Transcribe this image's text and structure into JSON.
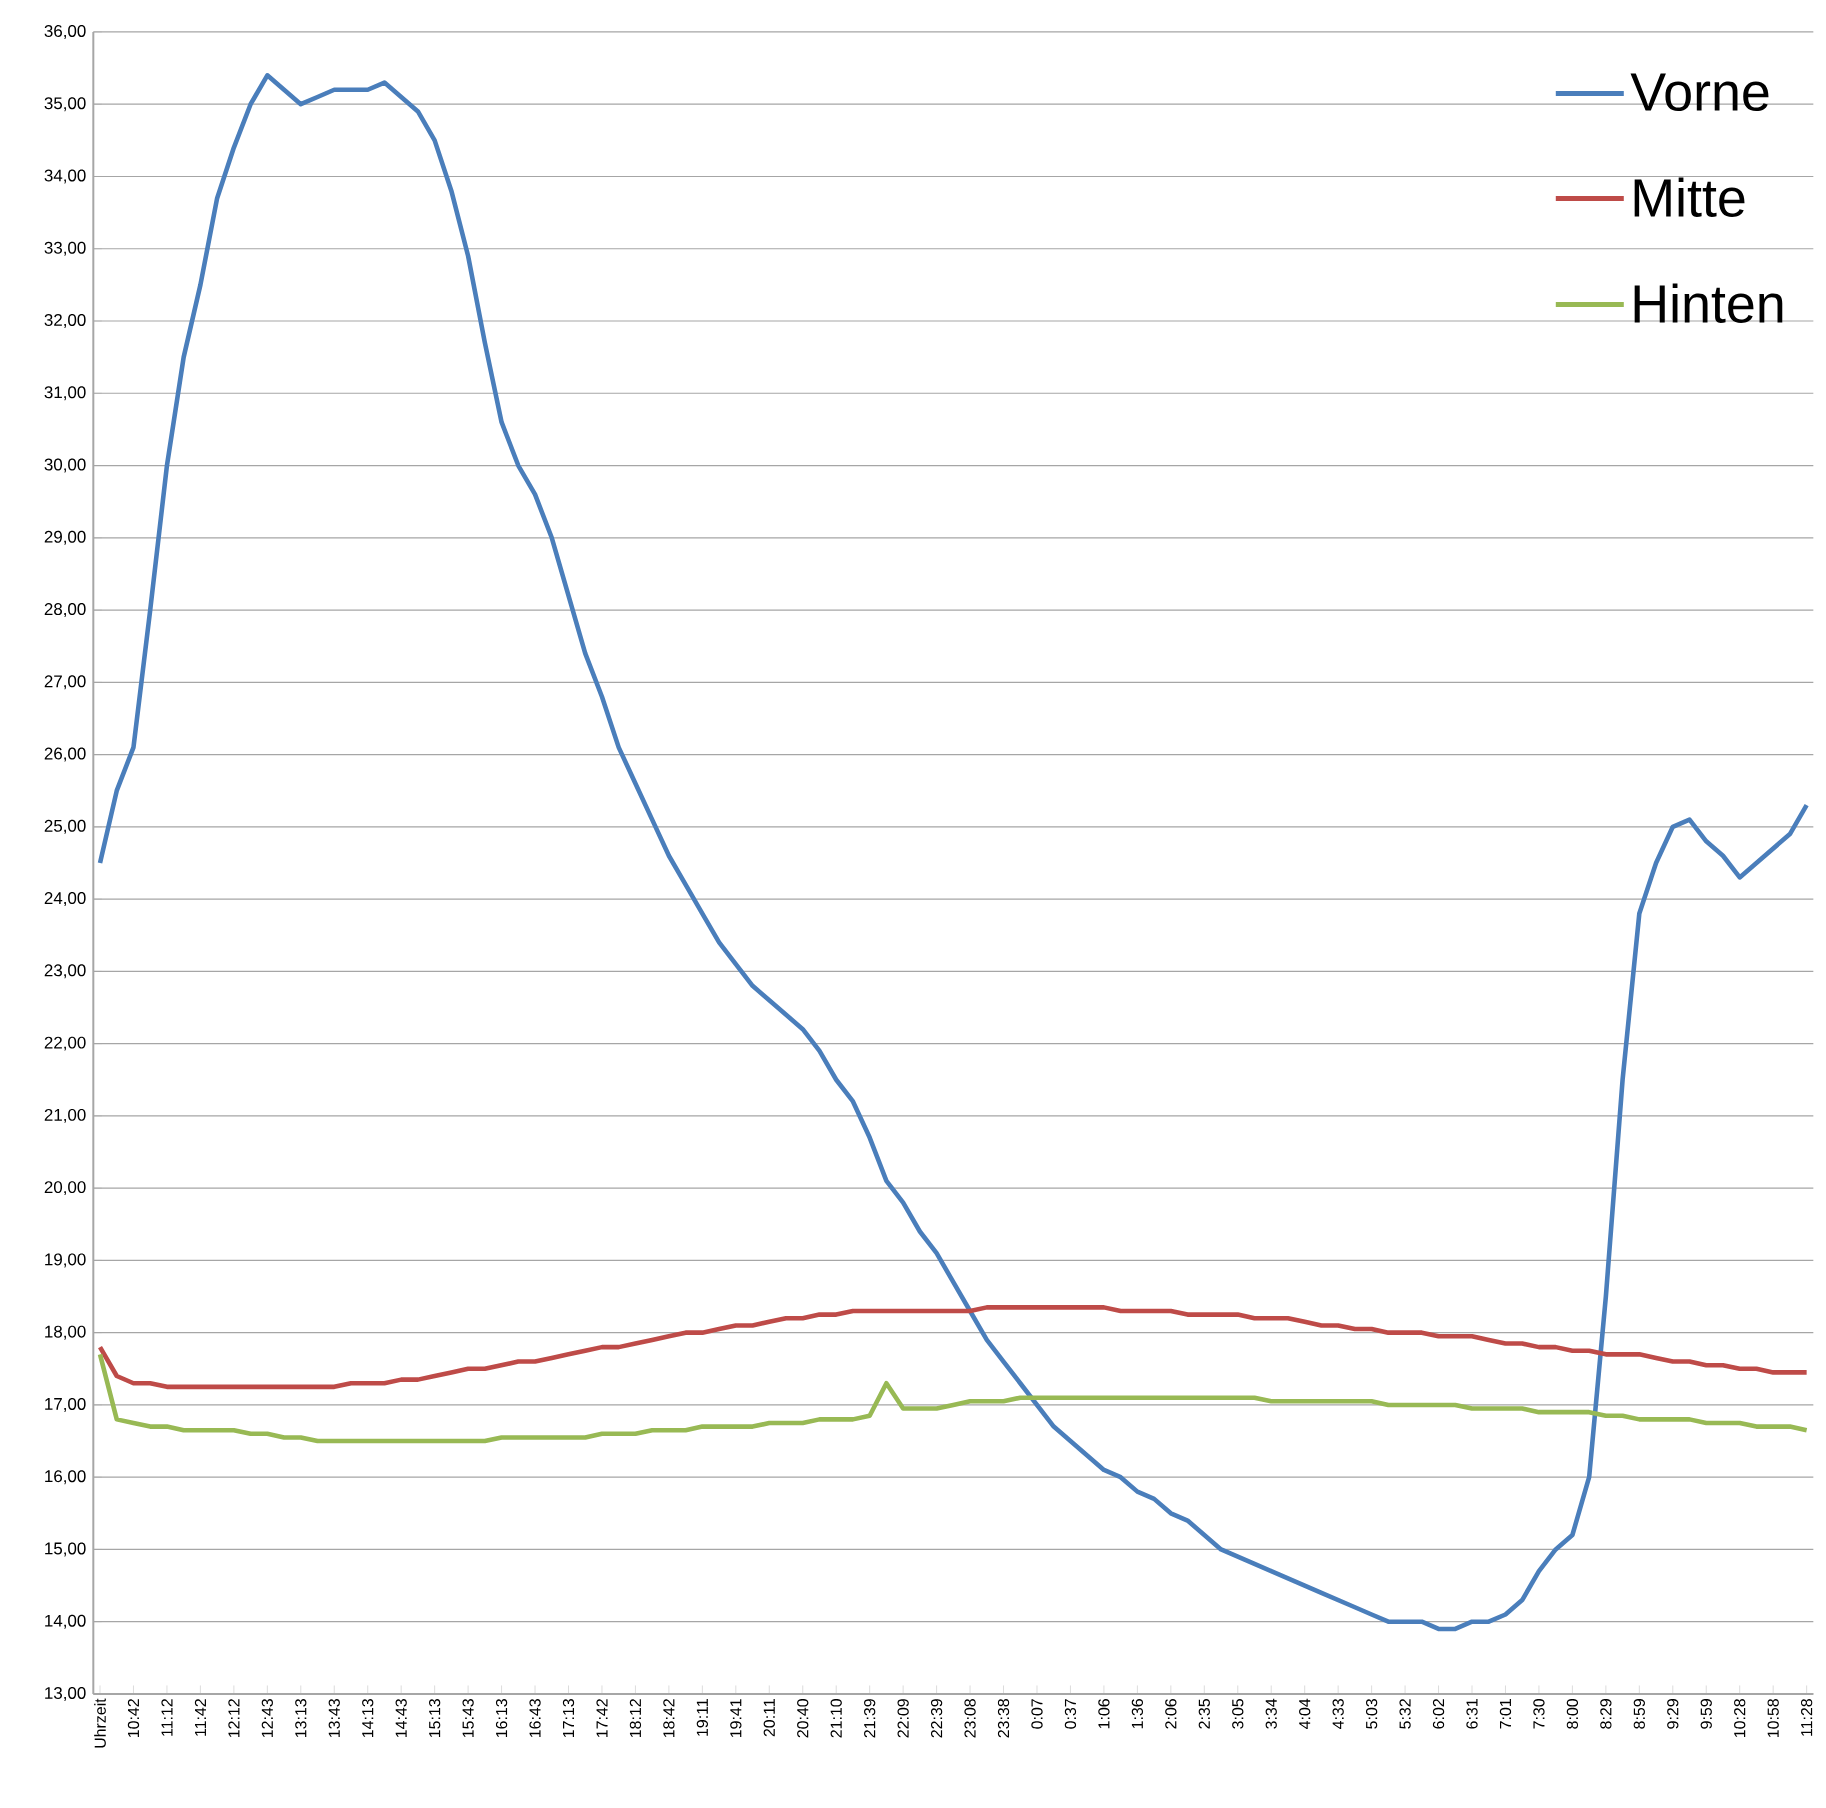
{
  "chart_data": {
    "type": "line",
    "categories": [
      "Uhrzeit",
      null,
      "10:42",
      null,
      "11:12",
      null,
      "11:42",
      null,
      "12:12",
      null,
      "12:43",
      null,
      "13:13",
      null,
      "13:43",
      null,
      "14:13",
      null,
      "14:43",
      null,
      "15:13",
      null,
      "15:43",
      null,
      "16:13",
      null,
      "16:43",
      null,
      "17:13",
      null,
      "17:42",
      null,
      "18:12",
      null,
      "18:42",
      null,
      "19:11",
      null,
      "19:41",
      null,
      "20:11",
      null,
      "20:40",
      null,
      "21:10",
      null,
      "21:39",
      null,
      "22:09",
      null,
      "22:39",
      null,
      "23:08",
      null,
      "23:38",
      null,
      "0:07",
      null,
      "0:37",
      null,
      "1:06",
      null,
      "1:36",
      null,
      "2:06",
      null,
      "2:35",
      null,
      "3:05",
      null,
      "3:34",
      null,
      "4:04",
      null,
      "4:33",
      null,
      "5:03",
      null,
      "5:32",
      null,
      "6:02",
      null,
      "6:31",
      null,
      "7:01",
      null,
      "7:30",
      null,
      "8:00",
      null,
      "8:29",
      null,
      "8:59",
      null,
      "9:29",
      null,
      "9:59",
      null,
      "10:28",
      null,
      "10:58",
      null,
      "11:28"
    ],
    "series": [
      {
        "name": "Vorne",
        "color": "#4a7ebb",
        "values": [
          24.5,
          25.5,
          26.1,
          28.0,
          30.0,
          31.5,
          32.5,
          33.7,
          34.4,
          35.0,
          35.4,
          35.2,
          35.0,
          35.1,
          35.2,
          35.2,
          35.2,
          35.3,
          35.1,
          34.9,
          34.5,
          33.8,
          32.9,
          31.7,
          30.6,
          30.0,
          29.6,
          29.0,
          28.2,
          27.4,
          26.8,
          26.1,
          25.6,
          25.1,
          24.6,
          24.2,
          23.8,
          23.4,
          23.1,
          22.8,
          22.6,
          22.4,
          22.2,
          21.9,
          21.5,
          21.2,
          20.7,
          20.1,
          19.8,
          19.4,
          19.1,
          18.7,
          18.3,
          17.9,
          17.6,
          17.3,
          17.0,
          16.7,
          16.5,
          16.3,
          16.1,
          16.0,
          15.8,
          15.7,
          15.5,
          15.4,
          15.2,
          15.0,
          14.9,
          14.8,
          14.7,
          14.6,
          14.5,
          14.4,
          14.3,
          14.2,
          14.1,
          14.0,
          14.0,
          14.0,
          13.9,
          13.9,
          14.0,
          14.0,
          14.1,
          14.3,
          14.7,
          15.0,
          15.2,
          16.0,
          18.5,
          21.5,
          23.8,
          24.5,
          25.0,
          25.1,
          24.8,
          24.6,
          24.3,
          24.5,
          24.7,
          24.9,
          25.3
        ]
      },
      {
        "name": "Mitte",
        "color": "#be4b48",
        "values": [
          17.8,
          17.4,
          17.3,
          17.3,
          17.25,
          17.25,
          17.25,
          17.25,
          17.25,
          17.25,
          17.25,
          17.25,
          17.25,
          17.25,
          17.25,
          17.3,
          17.3,
          17.3,
          17.35,
          17.35,
          17.4,
          17.45,
          17.5,
          17.5,
          17.55,
          17.6,
          17.6,
          17.65,
          17.7,
          17.75,
          17.8,
          17.8,
          17.85,
          17.9,
          17.95,
          18.0,
          18.0,
          18.05,
          18.1,
          18.1,
          18.15,
          18.2,
          18.2,
          18.25,
          18.25,
          18.3,
          18.3,
          18.3,
          18.3,
          18.3,
          18.3,
          18.3,
          18.3,
          18.35,
          18.35,
          18.35,
          18.35,
          18.35,
          18.35,
          18.35,
          18.35,
          18.3,
          18.3,
          18.3,
          18.3,
          18.25,
          18.25,
          18.25,
          18.25,
          18.2,
          18.2,
          18.2,
          18.15,
          18.1,
          18.1,
          18.05,
          18.05,
          18.0,
          18.0,
          18.0,
          17.95,
          17.95,
          17.95,
          17.9,
          17.85,
          17.85,
          17.8,
          17.8,
          17.75,
          17.75,
          17.7,
          17.7,
          17.7,
          17.65,
          17.6,
          17.6,
          17.55,
          17.55,
          17.5,
          17.5,
          17.45,
          17.45,
          17.45
        ]
      },
      {
        "name": "Hinten",
        "color": "#98b954",
        "values": [
          17.7,
          16.8,
          16.75,
          16.7,
          16.7,
          16.65,
          16.65,
          16.65,
          16.65,
          16.6,
          16.6,
          16.55,
          16.55,
          16.5,
          16.5,
          16.5,
          16.5,
          16.5,
          16.5,
          16.5,
          16.5,
          16.5,
          16.5,
          16.5,
          16.55,
          16.55,
          16.55,
          16.55,
          16.55,
          16.55,
          16.6,
          16.6,
          16.6,
          16.65,
          16.65,
          16.65,
          16.7,
          16.7,
          16.7,
          16.7,
          16.75,
          16.75,
          16.75,
          16.8,
          16.8,
          16.8,
          16.85,
          17.3,
          16.95,
          16.95,
          16.95,
          17.0,
          17.05,
          17.05,
          17.05,
          17.1,
          17.1,
          17.1,
          17.1,
          17.1,
          17.1,
          17.1,
          17.1,
          17.1,
          17.1,
          17.1,
          17.1,
          17.1,
          17.1,
          17.1,
          17.05,
          17.05,
          17.05,
          17.05,
          17.05,
          17.05,
          17.05,
          17.0,
          17.0,
          17.0,
          17.0,
          17.0,
          16.95,
          16.95,
          16.95,
          16.95,
          16.9,
          16.9,
          16.9,
          16.9,
          16.85,
          16.85,
          16.8,
          16.8,
          16.8,
          16.8,
          16.75,
          16.75,
          16.75,
          16.7,
          16.7,
          16.7,
          16.65
        ]
      }
    ],
    "ylim": [
      13,
      36
    ],
    "yticks": [
      {
        "value": 13,
        "label": "13,00"
      },
      {
        "value": 14,
        "label": "14,00"
      },
      {
        "value": 15,
        "label": "15,00"
      },
      {
        "value": 16,
        "label": "16,00"
      },
      {
        "value": 17,
        "label": "17,00"
      },
      {
        "value": 18,
        "label": "18,00"
      },
      {
        "value": 19,
        "label": "19,00"
      },
      {
        "value": 20,
        "label": "20,00"
      },
      {
        "value": 21,
        "label": "21,00"
      },
      {
        "value": 22,
        "label": "22,00"
      },
      {
        "value": 23,
        "label": "23,00"
      },
      {
        "value": 24,
        "label": "24,00"
      },
      {
        "value": 25,
        "label": "25,00"
      },
      {
        "value": 26,
        "label": "26,00"
      },
      {
        "value": 27,
        "label": "27,00"
      },
      {
        "value": 28,
        "label": "28,00"
      },
      {
        "value": 29,
        "label": "29,00"
      },
      {
        "value": 30,
        "label": "30,00"
      },
      {
        "value": 31,
        "label": "31,00"
      },
      {
        "value": 32,
        "label": "32,00"
      },
      {
        "value": 33,
        "label": "33,00"
      },
      {
        "value": 34,
        "label": "34,00"
      },
      {
        "value": 35,
        "label": "35,00"
      },
      {
        "value": 36,
        "label": "36,00"
      }
    ],
    "grid": "y",
    "legend": "top right"
  }
}
